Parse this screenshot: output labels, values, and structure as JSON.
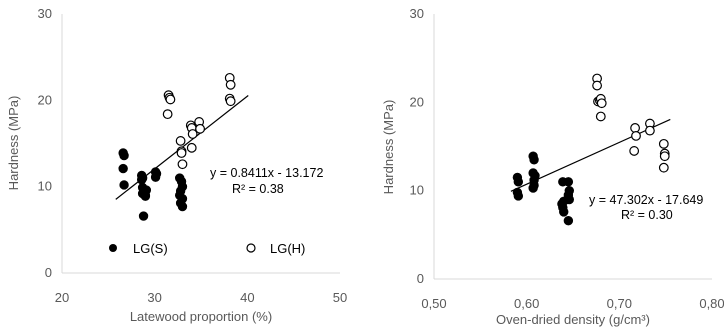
{
  "chart_data": [
    {
      "type": "scatter",
      "title": "",
      "xlabel": "Latewood proportion (%)",
      "ylabel": "Hardness (MPa)",
      "xlim": [
        20,
        50
      ],
      "ylim": [
        0,
        30
      ],
      "xticks": [
        "20",
        "30",
        "40",
        "50"
      ],
      "yticks": [
        "0",
        "10",
        "20",
        "30"
      ],
      "grid": false,
      "legend_position": "bottom",
      "series": [
        {
          "name": "LG(S)",
          "marker": "filled-circle",
          "color": "#000000",
          "x": [
            26.6,
            26.7,
            26.6,
            26.7,
            28.6,
            28.7,
            28.6,
            28.7,
            28.8,
            28.7,
            29.0,
            29.0,
            29.1,
            28.8,
            30.1,
            30.2,
            30.1,
            32.7,
            32.9,
            33.0,
            32.8,
            32.7,
            33.0,
            32.8,
            33.0
          ],
          "y": [
            13.9,
            13.6,
            12.1,
            10.2,
            11.3,
            11.0,
            10.8,
            9.9,
            9.5,
            9.2,
            9.0,
            8.9,
            9.6,
            6.6,
            11.7,
            11.5,
            11.1,
            11.0,
            10.6,
            10.0,
            9.5,
            9.0,
            8.6,
            8.1,
            7.7
          ]
        },
        {
          "name": "LG(H)",
          "marker": "open-circle",
          "color": "#000000",
          "x": [
            31.5,
            31.6,
            31.7,
            31.4,
            32.8,
            32.9,
            32.9,
            33.0,
            33.9,
            34.0,
            34.1,
            34.0,
            34.8,
            34.9,
            38.1,
            38.2,
            38.1,
            38.2
          ],
          "y": [
            20.6,
            20.3,
            20.1,
            18.4,
            15.3,
            14.1,
            13.9,
            12.6,
            17.1,
            16.8,
            16.1,
            14.5,
            17.5,
            16.7,
            22.6,
            21.8,
            20.2,
            19.9
          ]
        }
      ],
      "trendline": {
        "slope": 0.8411,
        "intercept": -13.172,
        "x_range": [
          25.8,
          40.1
        ]
      },
      "annotations": [
        "y = 0.8411x - 13.172",
        "R² = 0.38"
      ]
    },
    {
      "type": "scatter",
      "title": "",
      "xlabel": "Oven-dried density (g/cm³)",
      "ylabel": "Hardness (MPa)",
      "xlim": [
        0.5,
        0.8
      ],
      "ylim": [
        0,
        30
      ],
      "xticks": [
        "0,50",
        "0,60",
        "0,70",
        "0,80"
      ],
      "yticks": [
        "0",
        "10",
        "20",
        "30"
      ],
      "grid": false,
      "series": [
        {
          "name": "LG(S)",
          "marker": "filled-circle",
          "color": "#000000",
          "x": [
            0.59,
            0.591,
            0.59,
            0.591,
            0.607,
            0.608,
            0.607,
            0.609,
            0.608,
            0.608,
            0.607,
            0.639,
            0.64,
            0.638,
            0.639,
            0.64,
            0.645,
            0.646,
            0.645,
            0.646,
            0.645
          ],
          "y": [
            11.5,
            11.0,
            9.8,
            9.4,
            13.9,
            13.5,
            12.0,
            11.7,
            11.2,
            10.6,
            10.3,
            11.0,
            8.8,
            8.5,
            8.1,
            7.6,
            11.0,
            10.0,
            9.5,
            9.0,
            6.6
          ]
        },
        {
          "name": "LG(H)",
          "marker": "open-circle",
          "color": "#000000",
          "x": [
            0.676,
            0.676,
            0.677,
            0.679,
            0.68,
            0.681,
            0.68,
            0.717,
            0.718,
            0.716,
            0.733,
            0.733,
            0.748,
            0.749,
            0.749,
            0.748
          ],
          "y": [
            22.7,
            21.9,
            20.1,
            20.2,
            20.4,
            19.9,
            18.4,
            17.1,
            16.2,
            14.5,
            17.6,
            16.8,
            15.3,
            14.2,
            13.9,
            12.6
          ]
        }
      ],
      "trendline": {
        "slope": 47.302,
        "intercept": -17.649,
        "x_range": [
          0.583,
          0.755
        ]
      },
      "annotations": [
        "y = 47.302x - 17.649",
        "R² = 0.30"
      ]
    }
  ]
}
